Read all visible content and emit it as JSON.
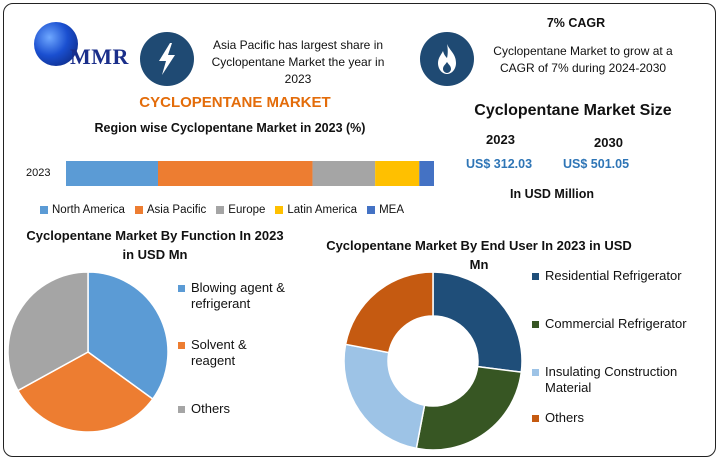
{
  "logo": {
    "text": "MMR"
  },
  "header": {
    "callout_left": "Asia Pacific has largest share in Cyclopentane Market the year in 2023",
    "cagr_title": "7% CAGR",
    "callout_right": "Cyclopentane Market to grow at a CAGR of 7% during 2024-2030",
    "left_icon": "lightning-icon",
    "right_icon": "flame-icon"
  },
  "market_title": "CYCLOPENTANE MARKET",
  "market_size": {
    "title": "Cyclopentane Market Size",
    "year1": "2023",
    "value1": "US$ 312.03",
    "year2": "2030",
    "value2": "US$ 501.05",
    "unit": "In USD Million"
  },
  "colors": {
    "blue": "#5b9bd5",
    "orange": "#ed7d31",
    "gray": "#a5a5a5",
    "yellow": "#ffc000",
    "darkblue": "#4472c4",
    "navy": "#1f4e79",
    "green": "#375623",
    "lightblue": "#9dc3e6",
    "rust": "#c55a11"
  },
  "chart_data": [
    {
      "type": "bar",
      "orientation": "horizontal-stacked",
      "title": "Region wise Cyclopentane Market in 2023 (%)",
      "categories": [
        "2023"
      ],
      "series": [
        {
          "name": "North America",
          "values": [
            25
          ]
        },
        {
          "name": "Asia Pacific",
          "values": [
            42
          ]
        },
        {
          "name": "Europe",
          "values": [
            17
          ]
        },
        {
          "name": "Latin America",
          "values": [
            12
          ]
        },
        {
          "name": "MEA",
          "values": [
            4
          ]
        }
      ],
      "legend": "bottom"
    },
    {
      "type": "pie",
      "title": "Cyclopentane Market By Function In 2023 in USD Mn",
      "slices": [
        {
          "label": "Blowing agent & refrigerant",
          "value": 35
        },
        {
          "label": "Solvent & reagent",
          "value": 32
        },
        {
          "label": "Others",
          "value": 33
        }
      ],
      "legend": "right"
    },
    {
      "type": "pie",
      "subtype": "donut",
      "title": "Cyclopentane Market By End User In 2023 in USD Mn",
      "slices": [
        {
          "label": "Residential Refrigerator",
          "value": 27
        },
        {
          "label": "Commercial Refrigerator",
          "value": 26
        },
        {
          "label": "Insulating Construction Material",
          "value": 25
        },
        {
          "label": "Others",
          "value": 22
        }
      ],
      "legend": "right"
    }
  ]
}
